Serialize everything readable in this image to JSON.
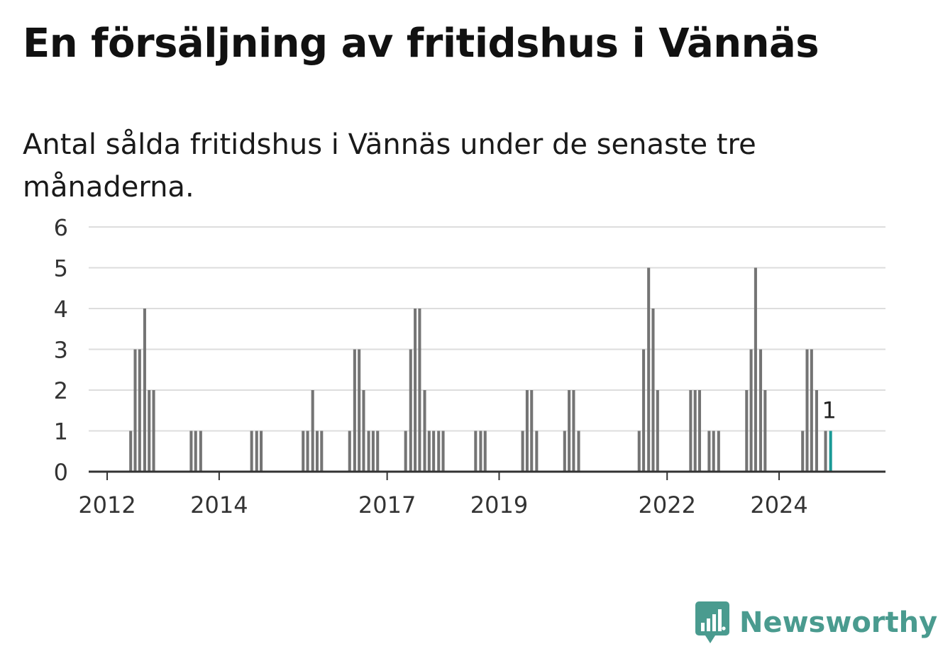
{
  "title": "En försäljning av fritidshus i Vännäs",
  "subtitle": "Antal sålda fritidshus i Vännäs under de senaste tre månaderna.",
  "brand": {
    "name": "Newsworthy",
    "logo_icon": "bar-chart-speech-bubble-icon",
    "color": "#4a9b8f"
  },
  "colors": {
    "bar": "#747474",
    "highlight": "#1a9a96",
    "grid": "#dddddd",
    "axis": "#333333"
  },
  "chart_data": {
    "type": "bar",
    "title": "En försäljning av fritidshus i Vännäs",
    "subtitle": "Antal sålda fritidshus i Vännäs under de senaste tre månaderna.",
    "xlabel": "",
    "ylabel": "",
    "ylim": [
      0,
      6
    ],
    "yticks": [
      0,
      1,
      2,
      3,
      4,
      5,
      6
    ],
    "xlim": [
      2011.67,
      2025.9
    ],
    "xticks": [
      2012,
      2014,
      2017,
      2019,
      2022,
      2024
    ],
    "xtick_labels": [
      "2012",
      "2014",
      "2017",
      "2019",
      "2022",
      "2024"
    ],
    "grid": true,
    "bar_width_years": 0.0667,
    "highlight_value_label": "1",
    "series": [
      {
        "x": [
          2012.42,
          2012.5,
          2012.58,
          2012.67,
          2012.75,
          2012.83,
          2013.5,
          2013.58,
          2013.67,
          2014.58,
          2014.67,
          2014.75,
          2015.5,
          2015.58,
          2015.67,
          2015.75,
          2015.83,
          2016.33,
          2016.42,
          2016.5,
          2016.58,
          2016.67,
          2016.75,
          2016.83,
          2017.33,
          2017.42,
          2017.5,
          2017.58,
          2017.67,
          2017.75,
          2017.83,
          2017.92,
          2018.0,
          2018.58,
          2018.67,
          2018.75,
          2019.42,
          2019.5,
          2019.58,
          2019.67,
          2020.17,
          2020.25,
          2020.33,
          2020.42,
          2021.5,
          2021.58,
          2021.67,
          2021.75,
          2021.83,
          2022.42,
          2022.5,
          2022.58,
          2022.75,
          2022.83,
          2022.92,
          2023.42,
          2023.5,
          2023.58,
          2023.67,
          2023.75,
          2024.42,
          2024.5,
          2024.58,
          2024.67,
          2024.83
        ],
        "values": [
          1,
          3,
          3,
          4,
          2,
          2,
          1,
          1,
          1,
          1,
          1,
          1,
          1,
          1,
          2,
          1,
          1,
          1,
          3,
          3,
          2,
          1,
          1,
          1,
          1,
          3,
          4,
          4,
          2,
          1,
          1,
          1,
          1,
          1,
          1,
          1,
          1,
          2,
          2,
          1,
          1,
          2,
          2,
          1,
          1,
          3,
          5,
          4,
          2,
          2,
          2,
          2,
          1,
          1,
          1,
          2,
          3,
          5,
          3,
          2,
          1,
          3,
          3,
          2,
          1
        ]
      },
      {
        "x": [
          2024.92
        ],
        "values": [
          1
        ]
      }
    ]
  }
}
